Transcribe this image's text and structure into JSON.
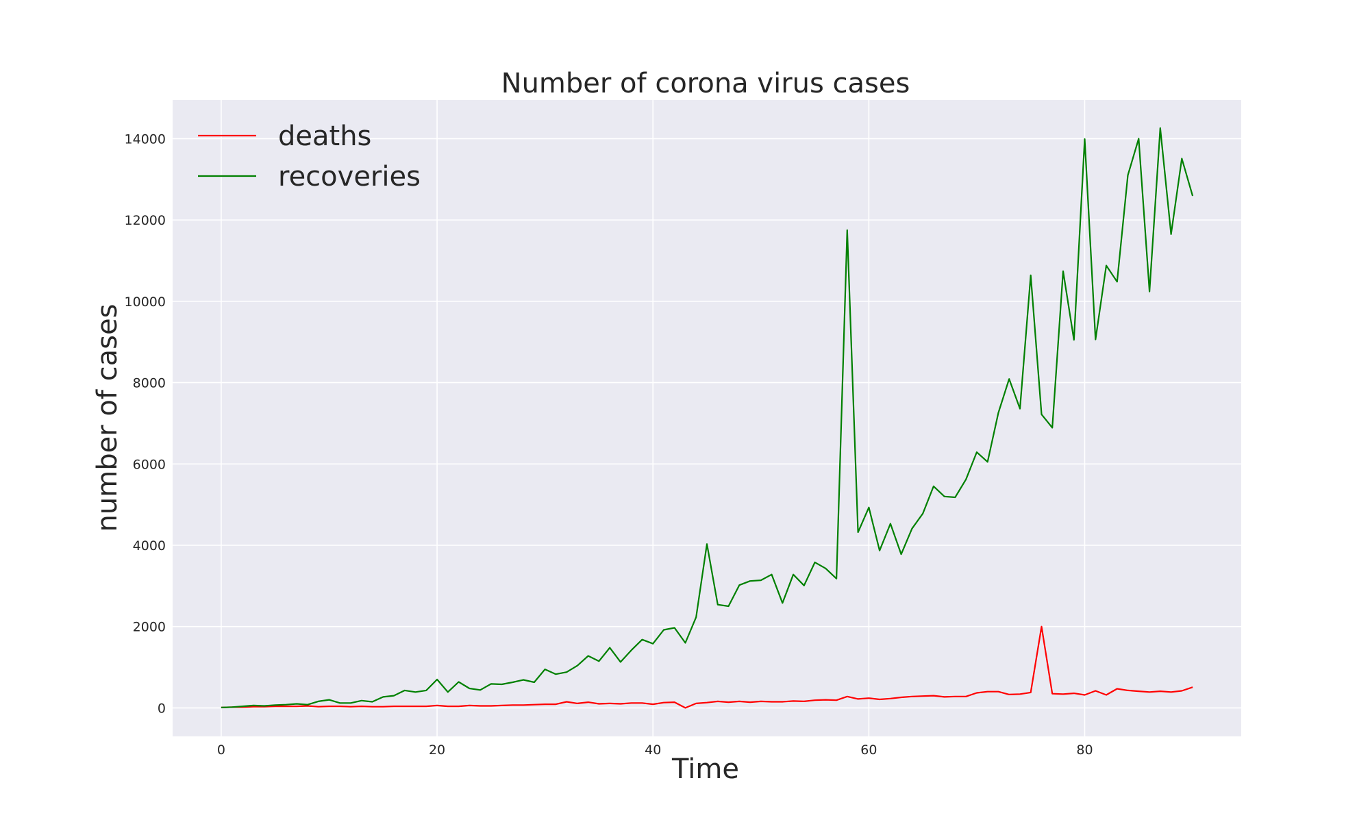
{
  "chart_data": {
    "type": "line",
    "title": "Number of corona virus cases",
    "xlabel": "Time",
    "ylabel": "number of cases",
    "xlim": [
      -4.5,
      94.5
    ],
    "ylim": [
      -700,
      14950
    ],
    "xticks": [
      0,
      20,
      40,
      60,
      80
    ],
    "yticks": [
      0,
      2000,
      4000,
      6000,
      8000,
      10000,
      12000,
      14000
    ],
    "grid": true,
    "legend_position": "top-left",
    "background_color": "#eaeaf2",
    "x": [
      0,
      1,
      2,
      3,
      4,
      5,
      6,
      7,
      8,
      9,
      10,
      11,
      12,
      13,
      14,
      15,
      16,
      17,
      18,
      19,
      20,
      21,
      22,
      23,
      24,
      25,
      26,
      27,
      28,
      29,
      30,
      31,
      32,
      33,
      34,
      35,
      36,
      37,
      38,
      39,
      40,
      41,
      42,
      43,
      44,
      45,
      46,
      47,
      48,
      49,
      50,
      51,
      52,
      53,
      54,
      55,
      56,
      57,
      58,
      59,
      60,
      61,
      62,
      63,
      64,
      65,
      66,
      67,
      68,
      69,
      70,
      71,
      72,
      73,
      74,
      75,
      76,
      77,
      78,
      79,
      80,
      81,
      82,
      83,
      84,
      85,
      86,
      87,
      88,
      89,
      90
    ],
    "series": [
      {
        "name": "deaths",
        "color": "#ff0000",
        "values": [
          10,
          20,
          20,
          30,
          30,
          40,
          40,
          40,
          50,
          30,
          40,
          40,
          30,
          40,
          30,
          30,
          40,
          40,
          40,
          40,
          60,
          40,
          40,
          60,
          50,
          50,
          60,
          70,
          70,
          80,
          90,
          90,
          150,
          110,
          140,
          100,
          110,
          100,
          120,
          120,
          90,
          130,
          140,
          0,
          110,
          130,
          160,
          140,
          160,
          140,
          160,
          150,
          150,
          170,
          160,
          190,
          200,
          190,
          280,
          220,
          240,
          210,
          230,
          260,
          280,
          290,
          300,
          270,
          280,
          280,
          370,
          400,
          400,
          330,
          340,
          380,
          2000,
          350,
          340,
          360,
          320,
          420,
          320,
          470,
          430,
          410,
          390,
          410,
          390,
          420,
          510
        ]
      },
      {
        "name": "recoveries",
        "color": "#008000",
        "values": [
          10,
          20,
          40,
          60,
          50,
          70,
          80,
          100,
          80,
          160,
          200,
          120,
          120,
          180,
          150,
          270,
          300,
          430,
          390,
          430,
          700,
          390,
          640,
          480,
          440,
          590,
          580,
          630,
          690,
          630,
          950,
          830,
          880,
          1040,
          1280,
          1150,
          1480,
          1130,
          1420,
          1680,
          1580,
          1920,
          1970,
          1600,
          2230,
          4030,
          2540,
          2500,
          3020,
          3120,
          3140,
          3280,
          2580,
          3280,
          3010,
          3580,
          3430,
          3180,
          11750,
          4320,
          4930,
          3870,
          4530,
          3780,
          4410,
          4780,
          5450,
          5200,
          5180,
          5620,
          6290,
          6050,
          7260,
          8090,
          7360,
          10640,
          7220,
          6890,
          10740,
          9050,
          13990,
          9060,
          10880,
          10480,
          13100,
          14000,
          10240,
          14260,
          11650,
          13510,
          12590
        ]
      }
    ]
  }
}
